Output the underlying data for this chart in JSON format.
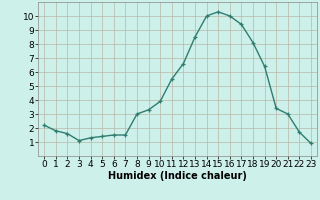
{
  "x": [
    0,
    1,
    2,
    3,
    4,
    5,
    6,
    7,
    8,
    9,
    10,
    11,
    12,
    13,
    14,
    15,
    16,
    17,
    18,
    19,
    20,
    21,
    22,
    23
  ],
  "y": [
    2.2,
    1.8,
    1.6,
    1.1,
    1.3,
    1.4,
    1.5,
    1.5,
    3.0,
    3.3,
    3.9,
    5.5,
    6.6,
    8.5,
    10.0,
    10.3,
    10.0,
    9.4,
    8.1,
    6.4,
    3.4,
    3.0,
    1.7,
    0.9
  ],
  "line_color": "#2e7d6e",
  "marker": "+",
  "marker_size": 3,
  "linewidth": 1.0,
  "xlabel": "Humidex (Indice chaleur)",
  "xlim": [
    -0.5,
    23.5
  ],
  "ylim": [
    0,
    11
  ],
  "xticks": [
    0,
    1,
    2,
    3,
    4,
    5,
    6,
    7,
    8,
    9,
    10,
    11,
    12,
    13,
    14,
    15,
    16,
    17,
    18,
    19,
    20,
    21,
    22,
    23
  ],
  "yticks": [
    1,
    2,
    3,
    4,
    5,
    6,
    7,
    8,
    9,
    10
  ],
  "background_color": "#cdf0eb",
  "grid_color": "#b8b8a8",
  "xlabel_fontsize": 7,
  "tick_fontsize": 6.5
}
